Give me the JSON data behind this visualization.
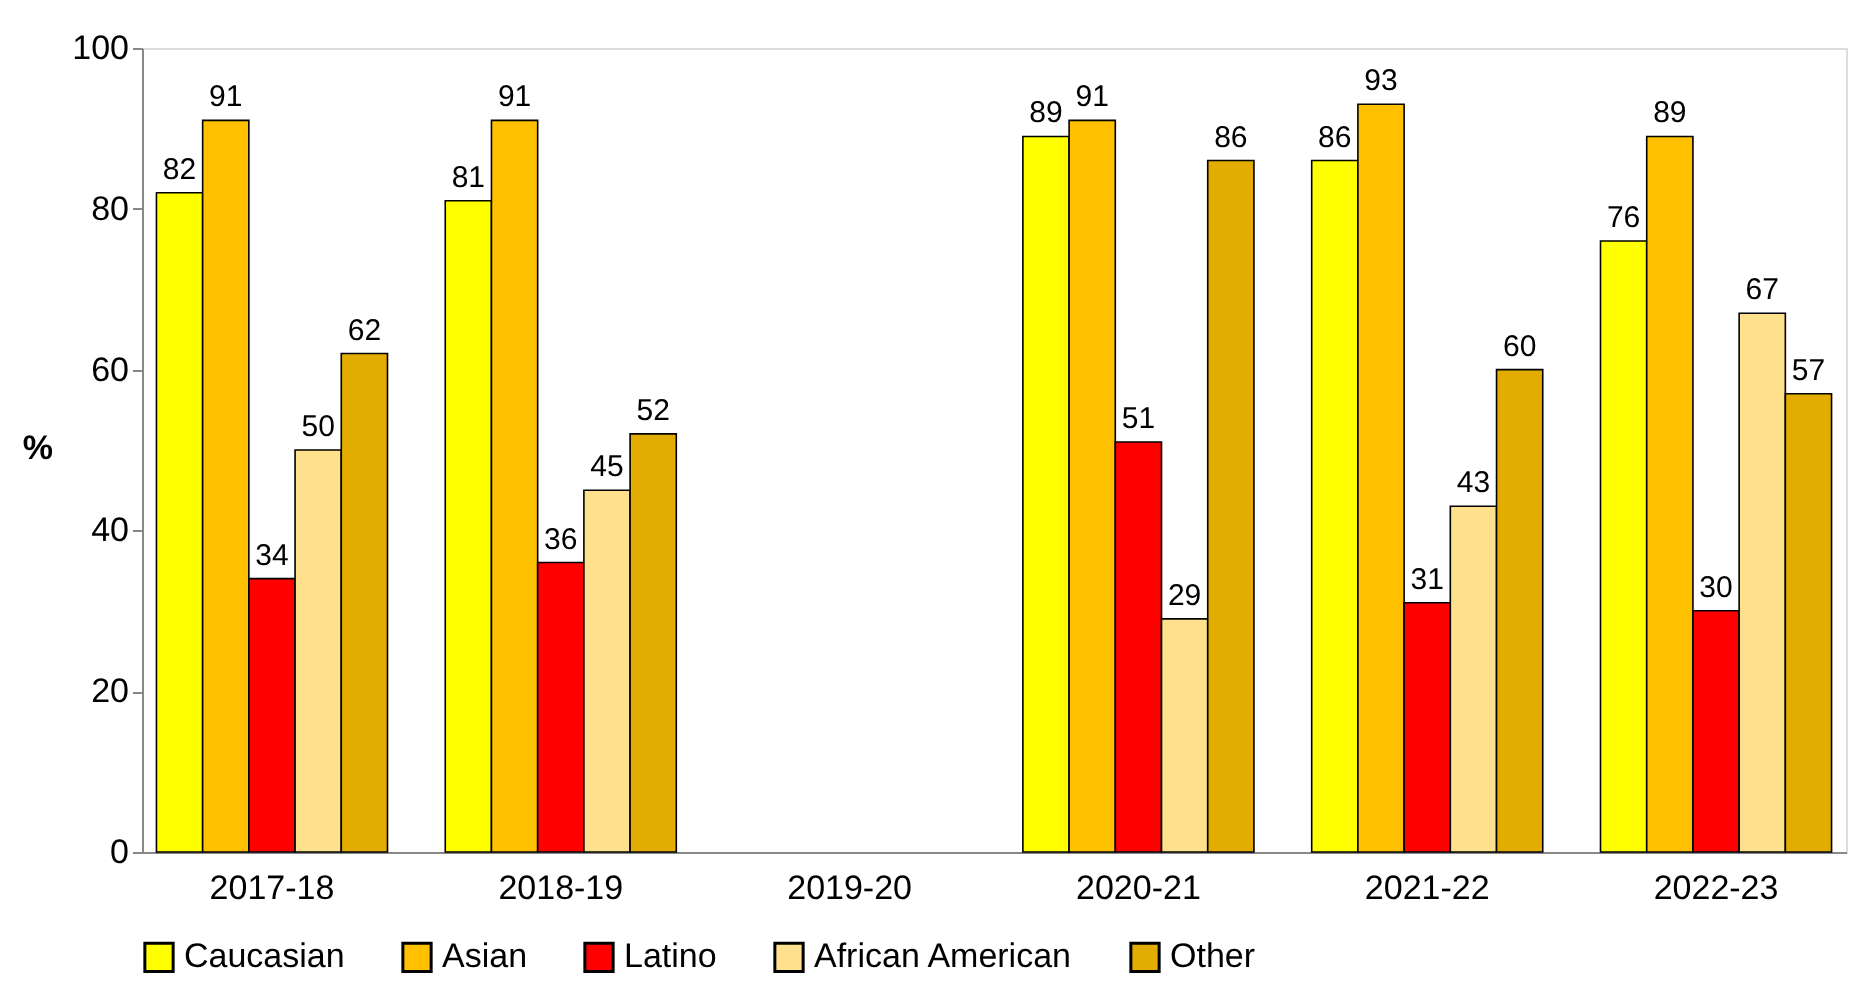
{
  "chart_data": {
    "type": "bar",
    "ylabel": "%",
    "categories": [
      "2017-18",
      "2018-19",
      "2019-20",
      "2020-21",
      "2021-22",
      "2022-23"
    ],
    "series": [
      {
        "name": "Caucasian",
        "color": "#ffff00",
        "values": [
          82,
          81,
          null,
          89,
          86,
          76
        ]
      },
      {
        "name": "Asian",
        "color": "#ffc000",
        "values": [
          91,
          91,
          null,
          91,
          93,
          89
        ]
      },
      {
        "name": "Latino",
        "color": "#ff0000",
        "values": [
          34,
          36,
          null,
          51,
          31,
          30
        ]
      },
      {
        "name": "African American",
        "color": "#ffe08c",
        "values": [
          50,
          45,
          null,
          29,
          43,
          67
        ]
      },
      {
        "name": "Other",
        "color": "#e2ac00",
        "values": [
          62,
          52,
          null,
          86,
          60,
          57
        ]
      }
    ],
    "ylim": [
      0,
      100
    ],
    "yticks": [
      0,
      20,
      40,
      60,
      80,
      100
    ],
    "grid": false,
    "legend": "bottom",
    "data_labels": true
  }
}
